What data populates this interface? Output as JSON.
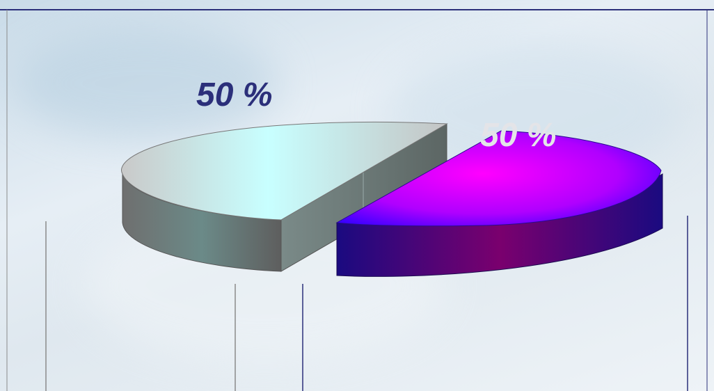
{
  "chart_data": {
    "type": "pie",
    "style": "3d-exploded",
    "slices": [
      {
        "label": "50 %",
        "value": 50,
        "color": "#c8ffff",
        "side_color": "#6b7c7a"
      },
      {
        "label": "50 %",
        "value": 50,
        "color": "#ff00ff",
        "side_color": "#2a0a7a"
      }
    ],
    "label_colors": [
      "#2b2f7a",
      "#e4e4e8"
    ],
    "accent_line_color": "#2b2f7a",
    "grid_line_color": "#8a8a8a"
  }
}
